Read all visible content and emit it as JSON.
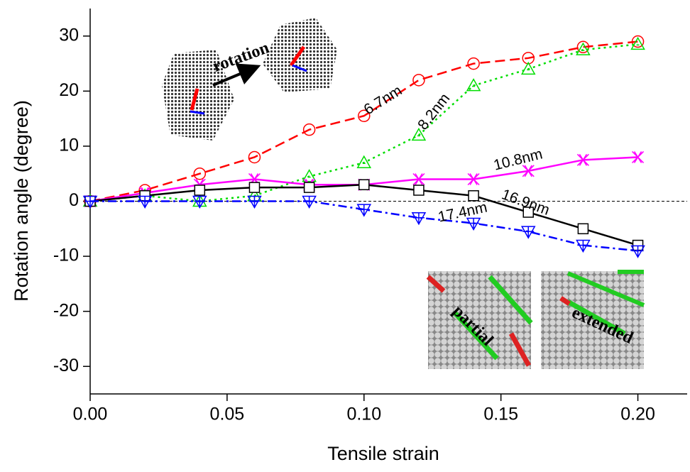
{
  "chart_data": {
    "type": "line",
    "x_label": "Tensile strain",
    "y_label": "Rotation angle (degree)",
    "x": [
      0,
      0.02,
      0.04,
      0.06,
      0.08,
      0.1,
      0.12,
      0.14,
      0.16,
      0.18,
      0.2
    ],
    "series": [
      {
        "name": "6.7nm",
        "color": "#ff0000",
        "line_style": "dashed",
        "marker": "circle",
        "values": [
          0,
          2,
          5,
          8,
          13,
          15.5,
          22,
          25,
          26,
          28,
          29
        ]
      },
      {
        "name": "8.2nm",
        "color": "#00dd00",
        "line_style": "dotted",
        "marker": "triangle",
        "values": [
          0,
          1,
          0,
          1,
          4.5,
          7,
          12,
          21,
          24,
          27.5,
          28.5
        ]
      },
      {
        "name": "10.8nm",
        "color": "#ff00ff",
        "line_style": "solid",
        "marker": "x",
        "values": [
          0,
          1.5,
          3,
          4,
          3,
          3,
          4,
          4,
          5.5,
          7.5,
          8
        ]
      },
      {
        "name": "16.9nm",
        "color": "#000000",
        "line_style": "solid",
        "marker": "square",
        "values": [
          0,
          1,
          2,
          2.5,
          2.5,
          3,
          2,
          1,
          -2,
          -5,
          -8
        ]
      },
      {
        "name": "17.4nm",
        "color": "#0000ff",
        "line_style": "dashdot",
        "marker": "triangle-down",
        "values": [
          0,
          0,
          0,
          0,
          0,
          -1.5,
          -3,
          -4,
          -5.5,
          -8,
          -9
        ]
      }
    ],
    "xlim": [
      0,
      0.218
    ],
    "ylim": [
      -35,
      35
    ],
    "xticks": [
      {
        "value": 0,
        "label": "0.00"
      },
      0.05,
      {
        "value": 0.1,
        "label": "0.10"
      },
      0.15,
      {
        "value": 0.2,
        "label": "0.20"
      }
    ],
    "yticks": [
      -30,
      -20,
      -10,
      0,
      10,
      20,
      30
    ],
    "reference_line": 0,
    "annotations": [
      "rotation",
      "partial",
      "extended"
    ]
  }
}
